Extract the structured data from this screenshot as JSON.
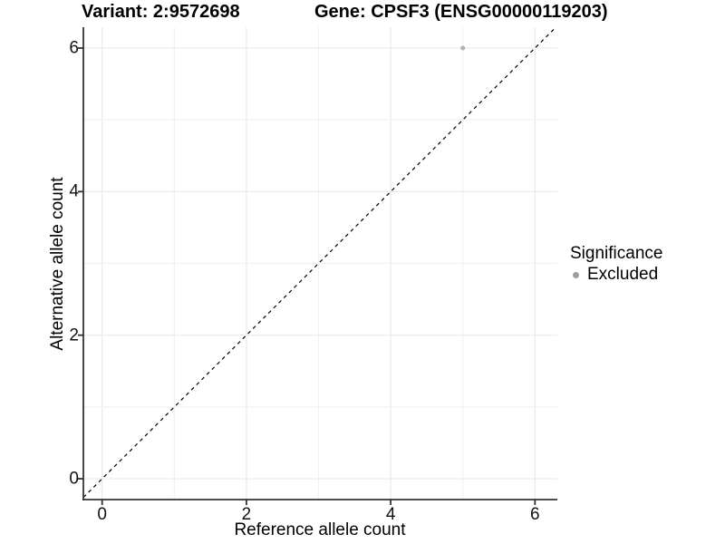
{
  "chart_data": {
    "type": "scatter",
    "title_left": "Variant: 2:9572698",
    "title_right": "Gene: CPSF3 (ENSG00000119203)",
    "xlabel": "Reference allele count",
    "ylabel": "Alternative allele count",
    "xlim": [
      -0.26,
      6.31
    ],
    "ylim": [
      -0.29,
      6.29
    ],
    "x_ticks": [
      0,
      2,
      4,
      6
    ],
    "y_ticks": [
      0,
      2,
      4,
      6
    ],
    "grid": "on",
    "gridline_step": 1,
    "points": [
      {
        "x": 5,
        "y": 6,
        "series": "Excluded"
      }
    ],
    "reference_line": {
      "type": "identity",
      "style": "dashed",
      "from": [
        -0.26,
        -0.26
      ],
      "to": [
        6.29,
        6.29
      ]
    },
    "legend": {
      "title": "Significance",
      "position": "right",
      "entries": [
        {
          "label": "Excluded",
          "color": "#9e9e9e"
        }
      ]
    },
    "colors": {
      "point": "#b3b3b3",
      "grid_major": "#e9e9e9",
      "grid_minor": "#f2f2f2",
      "axis": "#333333",
      "dashed_line": "#000000",
      "tick_mark": "#333333"
    }
  }
}
